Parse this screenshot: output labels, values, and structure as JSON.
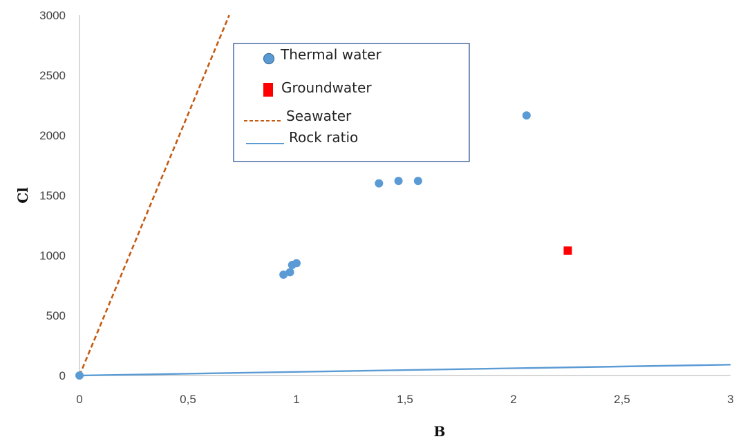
{
  "chart_data": {
    "type": "scatter",
    "title": "",
    "xlabel": "B",
    "ylabel": "Cl",
    "xlim": [
      0,
      3
    ],
    "ylim": [
      0,
      3000
    ],
    "x_ticks": [
      "0",
      "0,5",
      "1",
      "1,5",
      "2",
      "2,5",
      "3"
    ],
    "y_ticks": [
      "0",
      "500",
      "1000",
      "1500",
      "2000",
      "2500",
      "3000"
    ],
    "grid": false,
    "legend_position": "top-center",
    "series": [
      {
        "name": "Thermal water",
        "kind": "points",
        "marker": "circle",
        "color": "#5b9bd5",
        "points": [
          {
            "x": 0,
            "y": 0
          },
          {
            "x": 0.94,
            "y": 840
          },
          {
            "x": 0.97,
            "y": 860
          },
          {
            "x": 0.98,
            "y": 920
          },
          {
            "x": 1.0,
            "y": 935
          },
          {
            "x": 1.38,
            "y": 1600
          },
          {
            "x": 1.47,
            "y": 1620
          },
          {
            "x": 1.56,
            "y": 1620
          },
          {
            "x": 2.06,
            "y": 2165
          }
        ]
      },
      {
        "name": "Groundwater",
        "kind": "points",
        "marker": "square",
        "color": "#ff0000",
        "points": [
          {
            "x": 2.25,
            "y": 1040
          }
        ]
      },
      {
        "name": "Seawater",
        "kind": "line",
        "style": "dashed",
        "color": "#c55a11",
        "points": [
          {
            "x": 0,
            "y": 0
          },
          {
            "x": 0.69,
            "y": 3000
          }
        ]
      },
      {
        "name": "Rock ratio",
        "kind": "line",
        "style": "solid",
        "color": "#5b9bd5",
        "points": [
          {
            "x": 0,
            "y": 0
          },
          {
            "x": 3,
            "y": 90
          }
        ]
      }
    ]
  }
}
